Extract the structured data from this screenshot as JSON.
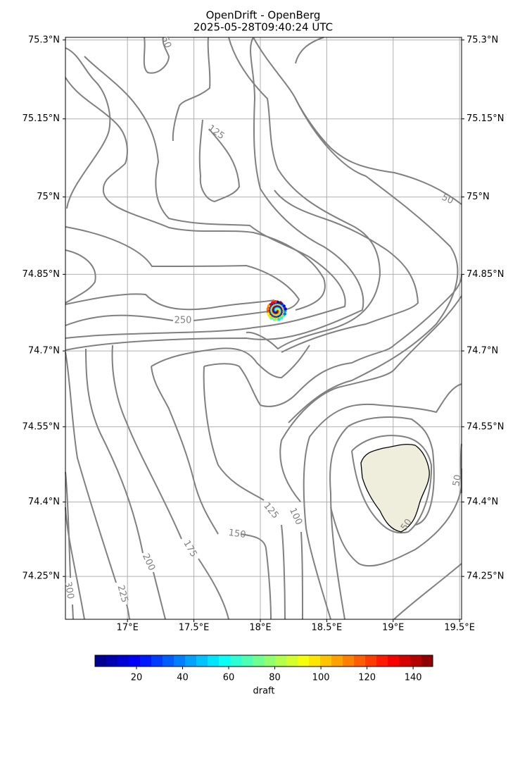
{
  "header": {
    "title": "OpenDrift - OpenBerg",
    "subtitle": "2025-05-28T09:40:24 UTC"
  },
  "map": {
    "lon_range": [
      16.533,
      19.515
    ],
    "lat_range": [
      74.163,
      75.305
    ],
    "lon_ticks": [
      {
        "value": 17,
        "label": "17°E"
      },
      {
        "value": 17.5,
        "label": "17.5°E"
      },
      {
        "value": 18,
        "label": "18°E"
      },
      {
        "value": 18.5,
        "label": "18.5°E"
      },
      {
        "value": 19,
        "label": "19°E"
      },
      {
        "value": 19.5,
        "label": "19.5°E"
      }
    ],
    "lat_ticks": [
      {
        "value": 75.3,
        "label": "75.3°N"
      },
      {
        "value": 75.15,
        "label": "75.15°N"
      },
      {
        "value": 75,
        "label": "75°N"
      },
      {
        "value": 74.85,
        "label": "74.85°N"
      },
      {
        "value": 74.7,
        "label": "74.7°N"
      },
      {
        "value": 74.55,
        "label": "74.55°N"
      },
      {
        "value": 74.4,
        "label": "74.4°N"
      },
      {
        "value": 74.25,
        "label": "74.25°N"
      }
    ],
    "contour_labels": [
      "50",
      "125",
      "50",
      "250",
      "125",
      "100",
      "150",
      "175",
      "200",
      "225",
      "300",
      "50",
      "50"
    ]
  },
  "colorbar": {
    "label": "draft",
    "range": [
      2,
      148.5
    ],
    "ticks": [
      20,
      40,
      60,
      80,
      100,
      120,
      140
    ]
  }
}
